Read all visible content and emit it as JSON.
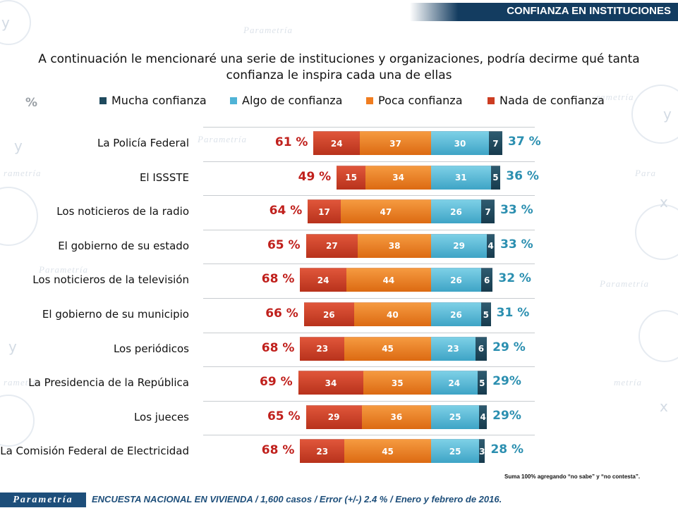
{
  "header": {
    "title": "CONFIANZA EN INSTITUCIONES"
  },
  "question": {
    "line1": "A continuación le mencionaré una serie de instituciones y organizaciones, podría decirme qué tanta",
    "line2": "confianza le inspira cada una de ellas"
  },
  "unit_label": "%",
  "colors": {
    "mucha": "#1f4a5e",
    "algo": "#4fb3d6",
    "poca": "#f07d20",
    "nada": "#cc3d22",
    "negative_total": "#c0201c",
    "positive_total": "#2b8fb0"
  },
  "chart_data": {
    "type": "bar",
    "orientation": "horizontal-diverging",
    "stacked": true,
    "legend_position": "top",
    "series_legend": [
      "Mucha confianza",
      "Algo de confianza",
      "Poca confianza",
      "Nada de confianza"
    ],
    "rows": [
      {
        "label": "La Policía Federal",
        "nada": 24,
        "poca": 37,
        "algo": 30,
        "mucha": 7,
        "neg_total": "61 %",
        "pos_total": "37 %"
      },
      {
        "label": "El ISSSTE",
        "nada": 15,
        "poca": 34,
        "algo": 31,
        "mucha": 5,
        "neg_total": "49 %",
        "pos_total": "36 %"
      },
      {
        "label": "Los noticieros de la radio",
        "nada": 17,
        "poca": 47,
        "algo": 26,
        "mucha": 7,
        "neg_total": "64 %",
        "pos_total": "33 %"
      },
      {
        "label": "El gobierno de su estado",
        "nada": 27,
        "poca": 38,
        "algo": 29,
        "mucha": 4,
        "neg_total": "65 %",
        "pos_total": "33 %"
      },
      {
        "label": "Los noticieros de la televisión",
        "nada": 24,
        "poca": 44,
        "algo": 26,
        "mucha": 6,
        "neg_total": "68 %",
        "pos_total": "32 %"
      },
      {
        "label": "El gobierno de su municipio",
        "nada": 26,
        "poca": 40,
        "algo": 26,
        "mucha": 5,
        "neg_total": "66 %",
        "pos_total": "31 %"
      },
      {
        "label": "Los periódicos",
        "nada": 23,
        "poca": 45,
        "algo": 23,
        "mucha": 6,
        "neg_total": "68 %",
        "pos_total": "29 %"
      },
      {
        "label": "La Presidencia de la República",
        "nada": 34,
        "poca": 35,
        "algo": 24,
        "mucha": 5,
        "neg_total": "69 %",
        "pos_total": "29%"
      },
      {
        "label": "Los jueces",
        "nada": 29,
        "poca": 36,
        "algo": 25,
        "mucha": 4,
        "neg_total": "65 %",
        "pos_total": "29%"
      },
      {
        "label": "La Comisión Federal de Electricidad",
        "nada": 23,
        "poca": 45,
        "algo": 25,
        "mucha": 3,
        "neg_total": "68 %",
        "pos_total": "28 %"
      }
    ]
  },
  "note": "Suma 100% agregando “no sabe” y “no contesta”.",
  "footer": {
    "brand": "Parametría",
    "text": "ENCUESTA NACIONAL EN VIVIENDA / 1,600 casos / Error (+/-) 2.4 % / Enero y febrero de 2016."
  }
}
